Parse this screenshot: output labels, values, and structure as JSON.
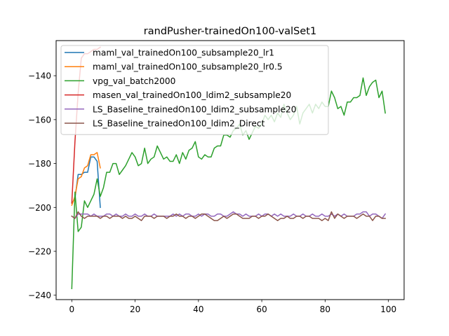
{
  "chart_data": {
    "type": "line",
    "title": "randPusher-trainedOn100-valSet1",
    "xlabel": "",
    "ylabel": "",
    "xlim": [
      -4.95,
      104.95
    ],
    "ylim": [
      -242,
      -124
    ],
    "xticks": [
      0,
      20,
      40,
      60,
      80,
      100
    ],
    "yticks": [
      -240,
      -220,
      -200,
      -180,
      -160,
      -140
    ],
    "ytick_labels": [
      "−240",
      "−220",
      "−200",
      "−180",
      "−160",
      "−140"
    ],
    "grid": false,
    "legend_position": "upper-left",
    "series": [
      {
        "name": "maml_val_trainedOn100_subsample20_lr1",
        "color": "#1f77b4",
        "x": [
          0,
          1,
          2,
          3,
          4,
          5,
          6,
          7,
          8,
          9
        ],
        "y": [
          -198,
          -196,
          -185,
          -185,
          -184,
          -184,
          -177,
          -177,
          -179,
          -200
        ]
      },
      {
        "name": "maml_val_trainedOn100_subsample20_lr0.5",
        "color": "#ff7f0e",
        "x": [
          0,
          1,
          2,
          3,
          4,
          5,
          6,
          7,
          8,
          9
        ],
        "y": [
          -199,
          -195,
          -187,
          -186,
          -182,
          -181,
          -176,
          -176,
          -175,
          -182
        ]
      },
      {
        "name": "vpg_val_batch2000",
        "color": "#2ca02c",
        "x": [
          0,
          1,
          2,
          3,
          4,
          5,
          6,
          7,
          8,
          9,
          10,
          11,
          12,
          13,
          14,
          15,
          16,
          17,
          18,
          19,
          20,
          21,
          22,
          23,
          24,
          25,
          26,
          27,
          28,
          29,
          30,
          31,
          32,
          33,
          34,
          35,
          36,
          37,
          38,
          39,
          40,
          41,
          42,
          43,
          44,
          45,
          46,
          47,
          48,
          49,
          50,
          51,
          52,
          53,
          54,
          55,
          56,
          57,
          58,
          59,
          60,
          61,
          62,
          63,
          64,
          65,
          66,
          67,
          68,
          69,
          70,
          71,
          72,
          73,
          74,
          75,
          76,
          77,
          78,
          79,
          80,
          81,
          82,
          83,
          84,
          85,
          86,
          87,
          88,
          89,
          90,
          91,
          92,
          93,
          94,
          95,
          96,
          97,
          98,
          99
        ],
        "y": [
          -237,
          -193,
          -211,
          -209,
          -197,
          -200,
          -197,
          -194,
          -187,
          -195,
          -191,
          -184,
          -184,
          -180,
          -180,
          -185,
          -183,
          -181,
          -178,
          -175,
          -177,
          -181,
          -180,
          -173,
          -180,
          -178,
          -177,
          -172,
          -175,
          -178,
          -177,
          -179,
          -179,
          -176,
          -180,
          -175,
          -178,
          -174,
          -173,
          -170,
          -177,
          -178,
          -176,
          -177,
          -177,
          -173,
          -172,
          -172,
          -167,
          -167,
          -168,
          -165,
          -164,
          -162,
          -167,
          -165,
          -169,
          -166,
          -163,
          -164,
          -162,
          -158,
          -160,
          -158,
          -161,
          -157,
          -159,
          -153,
          -157,
          -160,
          -158,
          -154,
          -162,
          -157,
          -155,
          -153,
          -157,
          -153,
          -155,
          -152,
          -154,
          -154,
          -147,
          -150,
          -155,
          -154,
          -158,
          -152,
          -152,
          -150,
          -150,
          -149,
          -141,
          -149,
          -145,
          -143,
          -142,
          -150,
          -147,
          -157
        ]
      },
      {
        "name": "masen_val_trainedOn100_ldim2_subsample20",
        "color": "#d62728",
        "x": [
          0,
          1,
          2,
          3,
          4,
          5,
          6,
          7,
          8,
          9
        ],
        "y": [
          -198,
          -170,
          -148,
          -132,
          -130,
          -130,
          -129,
          -128,
          -128,
          -127
        ]
      },
      {
        "name": "LS_Baseline_trainedOn100_ldim2_subsample20",
        "color": "#9467bd",
        "x": [
          0,
          1,
          2,
          3,
          4,
          5,
          6,
          7,
          8,
          9,
          10,
          11,
          12,
          13,
          14,
          15,
          16,
          17,
          18,
          19,
          20,
          21,
          22,
          23,
          24,
          25,
          26,
          27,
          28,
          29,
          30,
          31,
          32,
          33,
          34,
          35,
          36,
          37,
          38,
          39,
          40,
          41,
          42,
          43,
          44,
          45,
          46,
          47,
          48,
          49,
          50,
          51,
          52,
          53,
          54,
          55,
          56,
          57,
          58,
          59,
          60,
          61,
          62,
          63,
          64,
          65,
          66,
          67,
          68,
          69,
          70,
          71,
          72,
          73,
          74,
          75,
          76,
          77,
          78,
          79,
          80,
          81,
          82,
          83,
          84,
          85,
          86,
          87,
          88,
          89,
          90,
          91,
          92,
          93,
          94,
          95,
          96,
          97,
          98,
          99
        ],
        "y": [
          -204,
          -205,
          -203,
          -203,
          -203,
          -203,
          -204,
          -203,
          -204,
          -204,
          -204,
          -203,
          -203,
          -204,
          -203,
          -204,
          -204,
          -203,
          -204,
          -204,
          -203,
          -204,
          -204,
          -203,
          -204,
          -204,
          -203,
          -204,
          -204,
          -204,
          -204,
          -204,
          -203,
          -204,
          -203,
          -204,
          -203,
          -203,
          -204,
          -204,
          -203,
          -204,
          -203,
          -203,
          -204,
          -204,
          -203,
          -203,
          -204,
          -204,
          -203,
          -202,
          -203,
          -203,
          -204,
          -203,
          -204,
          -204,
          -204,
          -203,
          -204,
          -203,
          -203,
          -204,
          -203,
          -204,
          -203,
          -204,
          -204,
          -204,
          -203,
          -204,
          -204,
          -203,
          -204,
          -204,
          -203,
          -204,
          -204,
          -203,
          -204,
          -204,
          -203,
          -204,
          -203,
          -204,
          -203,
          -204,
          -204,
          -204,
          -203,
          -203,
          -202,
          -202,
          -204,
          -203,
          -203,
          -204,
          -205,
          -203
        ]
      },
      {
        "name": "LS_Baseline_trainedOn100_ldim2_Direct",
        "color": "#8c564b",
        "x": [
          0,
          1,
          2,
          3,
          4,
          5,
          6,
          7,
          8,
          9,
          10,
          11,
          12,
          13,
          14,
          15,
          16,
          17,
          18,
          19,
          20,
          21,
          22,
          23,
          24,
          25,
          26,
          27,
          28,
          29,
          30,
          31,
          32,
          33,
          34,
          35,
          36,
          37,
          38,
          39,
          40,
          41,
          42,
          43,
          44,
          45,
          46,
          47,
          48,
          49,
          50,
          51,
          52,
          53,
          54,
          55,
          56,
          57,
          58,
          59,
          60,
          61,
          62,
          63,
          64,
          65,
          66,
          67,
          68,
          69,
          70,
          71,
          72,
          73,
          74,
          75,
          76,
          77,
          78,
          79,
          80,
          81,
          82,
          83,
          84,
          85,
          86,
          87,
          88,
          89,
          90,
          91,
          92,
          93,
          94,
          95,
          96,
          97,
          98,
          99
        ],
        "y": [
          -204,
          -205,
          -202,
          -204,
          -205,
          -204,
          -204,
          -204,
          -204,
          -205,
          -204,
          -204,
          -205,
          -204,
          -204,
          -204,
          -205,
          -204,
          -205,
          -205,
          -204,
          -205,
          -206,
          -204,
          -204,
          -204,
          -205,
          -204,
          -204,
          -204,
          -205,
          -204,
          -204,
          -203,
          -204,
          -204,
          -205,
          -204,
          -204,
          -205,
          -204,
          -203,
          -203,
          -204,
          -205,
          -206,
          -206,
          -205,
          -204,
          -205,
          -204,
          -203,
          -203,
          -204,
          -205,
          -205,
          -205,
          -204,
          -204,
          -205,
          -204,
          -204,
          -203,
          -204,
          -205,
          -206,
          -205,
          -205,
          -204,
          -205,
          -205,
          -204,
          -204,
          -205,
          -204,
          -204,
          -205,
          -205,
          -205,
          -206,
          -205,
          -206,
          -202,
          -205,
          -203,
          -204,
          -205,
          -204,
          -204,
          -204,
          -205,
          -204,
          -203,
          -204,
          -204,
          -206,
          -204,
          -204,
          -205,
          -205
        ]
      }
    ]
  }
}
